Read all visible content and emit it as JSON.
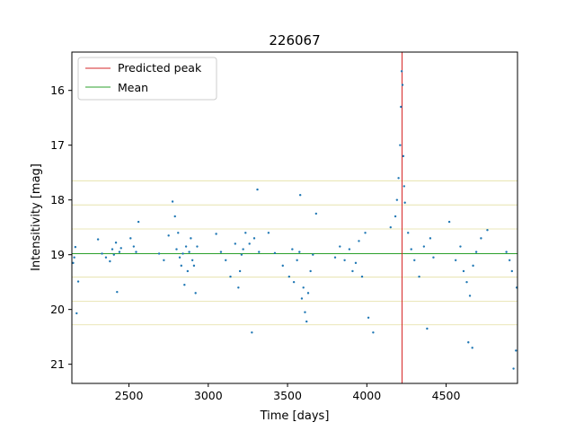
{
  "chart_data": {
    "type": "scatter",
    "title": "226067",
    "xlabel": "Time [days]",
    "ylabel": "Intensitivity [mag]",
    "xlim": [
      2140,
      4950
    ],
    "ylim": [
      21.35,
      15.3
    ],
    "y_inverted": true,
    "x_ticks": [
      2500,
      3000,
      3500,
      4000,
      4500
    ],
    "y_ticks": [
      16,
      17,
      18,
      19,
      20,
      21
    ],
    "legend": {
      "position": "upper-left",
      "entries": [
        {
          "label": "Predicted peak",
          "color": "#d62728"
        },
        {
          "label": "Mean",
          "color": "#2ca02c"
        }
      ]
    },
    "predicted_peak_x": 4222,
    "mean_y": 18.98,
    "sigma_lines_y": [
      17.65,
      18.09,
      18.53,
      19.41,
      19.85,
      20.28
    ],
    "point_color": "#1f77b4",
    "peak_line_color": "#d62728",
    "mean_line_color": "#2ca02c",
    "sigma_line_color": "#d9d27a",
    "points": [
      [
        2148,
        19.15
      ],
      [
        2155,
        19.05
      ],
      [
        2162,
        18.86
      ],
      [
        2170,
        20.07
      ],
      [
        2180,
        19.49
      ],
      [
        2305,
        18.72
      ],
      [
        2330,
        18.98
      ],
      [
        2355,
        19.05
      ],
      [
        2380,
        19.12
      ],
      [
        2395,
        18.9
      ],
      [
        2405,
        19.0
      ],
      [
        2418,
        18.78
      ],
      [
        2425,
        19.68
      ],
      [
        2440,
        18.95
      ],
      [
        2450,
        18.88
      ],
      [
        2510,
        18.7
      ],
      [
        2530,
        18.85
      ],
      [
        2545,
        18.95
      ],
      [
        2560,
        18.4
      ],
      [
        2690,
        18.98
      ],
      [
        2720,
        19.1
      ],
      [
        2750,
        18.65
      ],
      [
        2775,
        18.03
      ],
      [
        2790,
        18.3
      ],
      [
        2800,
        18.9
      ],
      [
        2810,
        18.6
      ],
      [
        2820,
        19.05
      ],
      [
        2830,
        19.2
      ],
      [
        2840,
        18.98
      ],
      [
        2850,
        19.55
      ],
      [
        2860,
        18.85
      ],
      [
        2870,
        19.3
      ],
      [
        2880,
        18.95
      ],
      [
        2890,
        18.7
      ],
      [
        2900,
        19.1
      ],
      [
        2910,
        19.2
      ],
      [
        2920,
        19.7
      ],
      [
        2930,
        18.85
      ],
      [
        3050,
        18.62
      ],
      [
        3080,
        18.95
      ],
      [
        3110,
        19.1
      ],
      [
        3140,
        19.4
      ],
      [
        3170,
        18.8
      ],
      [
        3190,
        19.6
      ],
      [
        3200,
        19.3
      ],
      [
        3210,
        19.0
      ],
      [
        3220,
        18.9
      ],
      [
        3235,
        18.6
      ],
      [
        3260,
        18.8
      ],
      [
        3275,
        20.42
      ],
      [
        3290,
        18.7
      ],
      [
        3310,
        17.81
      ],
      [
        3320,
        18.95
      ],
      [
        3380,
        18.6
      ],
      [
        3420,
        18.97
      ],
      [
        3470,
        19.2
      ],
      [
        3510,
        19.4
      ],
      [
        3530,
        18.9
      ],
      [
        3540,
        19.5
      ],
      [
        3560,
        19.1
      ],
      [
        3575,
        18.95
      ],
      [
        3580,
        17.91
      ],
      [
        3590,
        19.8
      ],
      [
        3600,
        19.6
      ],
      [
        3610,
        20.05
      ],
      [
        3620,
        20.22
      ],
      [
        3630,
        19.7
      ],
      [
        3645,
        19.3
      ],
      [
        3660,
        19.0
      ],
      [
        3680,
        18.25
      ],
      [
        3800,
        19.05
      ],
      [
        3830,
        18.85
      ],
      [
        3860,
        19.1
      ],
      [
        3890,
        18.9
      ],
      [
        3910,
        19.3
      ],
      [
        3930,
        19.15
      ],
      [
        3950,
        18.75
      ],
      [
        3970,
        19.4
      ],
      [
        3990,
        18.6
      ],
      [
        4010,
        20.15
      ],
      [
        4040,
        20.42
      ],
      [
        4150,
        18.5
      ],
      [
        4180,
        18.3
      ],
      [
        4190,
        18.0
      ],
      [
        4200,
        17.6
      ],
      [
        4210,
        17.0
      ],
      [
        4215,
        16.3
      ],
      [
        4220,
        15.65
      ],
      [
        4225,
        15.9
      ],
      [
        4230,
        17.2
      ],
      [
        4235,
        17.75
      ],
      [
        4240,
        18.05
      ],
      [
        4260,
        18.6
      ],
      [
        4280,
        18.9
      ],
      [
        4300,
        19.1
      ],
      [
        4330,
        19.4
      ],
      [
        4360,
        18.85
      ],
      [
        4380,
        20.35
      ],
      [
        4400,
        18.7
      ],
      [
        4420,
        19.05
      ],
      [
        4520,
        18.4
      ],
      [
        4560,
        19.1
      ],
      [
        4590,
        18.85
      ],
      [
        4610,
        19.3
      ],
      [
        4630,
        19.5
      ],
      [
        4650,
        19.75
      ],
      [
        4670,
        19.2
      ],
      [
        4690,
        18.95
      ],
      [
        4720,
        18.7
      ],
      [
        4760,
        18.55
      ],
      [
        4640,
        20.6
      ],
      [
        4665,
        20.7
      ],
      [
        4880,
        18.95
      ],
      [
        4900,
        19.1
      ],
      [
        4915,
        19.3
      ],
      [
        4925,
        21.08
      ],
      [
        4940,
        20.75
      ],
      [
        4945,
        19.6
      ]
    ]
  }
}
